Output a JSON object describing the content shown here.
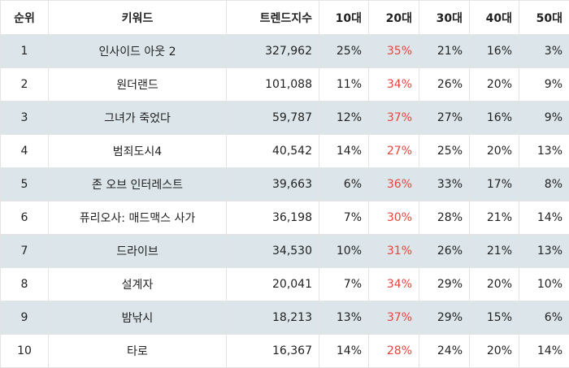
{
  "table": {
    "headers": [
      "순위",
      "키워드",
      "트렌드지수",
      "10대",
      "20대",
      "30대",
      "40대",
      "50대"
    ],
    "rows": [
      {
        "rank": "1",
        "keyword": "인사이드 아웃 2",
        "trend": "327,962",
        "age10": "25%",
        "age20": "35%",
        "age30": "21%",
        "age40": "16%",
        "age50": "3%"
      },
      {
        "rank": "2",
        "keyword": "원더랜드",
        "trend": "101,088",
        "age10": "11%",
        "age20": "34%",
        "age30": "26%",
        "age40": "20%",
        "age50": "9%"
      },
      {
        "rank": "3",
        "keyword": "그녀가 죽었다",
        "trend": "59,787",
        "age10": "12%",
        "age20": "37%",
        "age30": "27%",
        "age40": "16%",
        "age50": "9%"
      },
      {
        "rank": "4",
        "keyword": "범죄도시4",
        "trend": "40,542",
        "age10": "14%",
        "age20": "27%",
        "age30": "25%",
        "age40": "20%",
        "age50": "13%"
      },
      {
        "rank": "5",
        "keyword": "존 오브 인터레스트",
        "trend": "39,663",
        "age10": "6%",
        "age20": "36%",
        "age30": "33%",
        "age40": "17%",
        "age50": "8%"
      },
      {
        "rank": "6",
        "keyword": "퓨리오사: 매드맥스 사가",
        "trend": "36,198",
        "age10": "7%",
        "age20": "30%",
        "age30": "28%",
        "age40": "21%",
        "age50": "14%"
      },
      {
        "rank": "7",
        "keyword": "드라이브",
        "trend": "34,530",
        "age10": "10%",
        "age20": "31%",
        "age30": "26%",
        "age40": "21%",
        "age50": "13%"
      },
      {
        "rank": "8",
        "keyword": "설계자",
        "trend": "20,041",
        "age10": "7%",
        "age20": "34%",
        "age30": "29%",
        "age40": "20%",
        "age50": "10%"
      },
      {
        "rank": "9",
        "keyword": "밤낚시",
        "trend": "18,213",
        "age10": "13%",
        "age20": "37%",
        "age30": "29%",
        "age40": "15%",
        "age50": "6%"
      },
      {
        "rank": "10",
        "keyword": "타로",
        "trend": "16,367",
        "age10": "14%",
        "age20": "28%",
        "age30": "24%",
        "age40": "20%",
        "age50": "14%"
      }
    ]
  },
  "colors": {
    "stripe": "#dce5e9",
    "highlight": "#e5463b",
    "border": "#e4e4e4"
  }
}
